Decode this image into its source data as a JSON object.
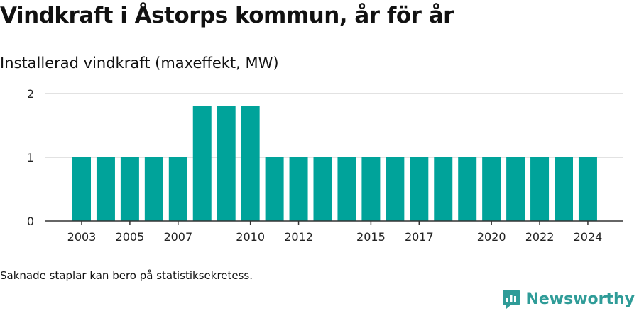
{
  "title": "Vindkraft i Åstorps kommun, år för år",
  "subtitle": "Installerad vindkraft (maxeffekt, MW)",
  "footnote": "Saknade staplar kan bero på statistiksekretess.",
  "brand": {
    "name": "Newsworthy",
    "icon": "newsworthy-logo-icon"
  },
  "colors": {
    "bar": "#00a39a",
    "grid": "#d9d9d9",
    "axis": "#333333",
    "brand": "#2f9c98"
  },
  "chart_data": {
    "type": "bar",
    "categories": [
      "2003",
      "2004",
      "2005",
      "2006",
      "2007",
      "2008",
      "2009",
      "2010",
      "2011",
      "2012",
      "2013",
      "2014",
      "2015",
      "2016",
      "2017",
      "2018",
      "2019",
      "2020",
      "2021",
      "2022",
      "2023",
      "2024"
    ],
    "values": [
      1,
      1,
      1,
      1,
      1,
      1.8,
      1.8,
      1.8,
      1,
      1,
      1,
      1,
      1,
      1,
      1,
      1,
      1,
      1,
      1,
      1,
      1,
      1
    ],
    "x_tick_labels": [
      "2003",
      "2005",
      "2007",
      "2010",
      "2012",
      "2015",
      "2017",
      "2020",
      "2022",
      "2024"
    ],
    "y_ticks": [
      0,
      1,
      2
    ],
    "ylim": [
      0,
      2
    ],
    "title": "Vindkraft i Åstorps kommun, år för år",
    "subtitle": "Installerad vindkraft (maxeffekt, MW)",
    "xlabel": "",
    "ylabel": "",
    "grid": true,
    "legend": false
  }
}
